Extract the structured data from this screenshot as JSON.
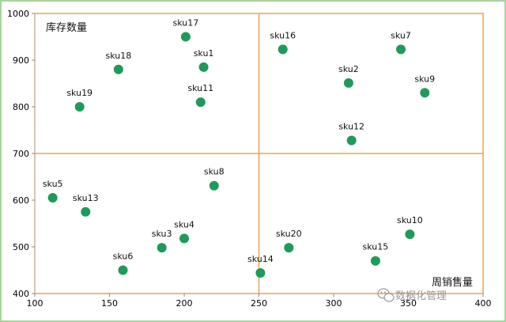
{
  "chart_data": {
    "type": "scatter",
    "title": "",
    "xlabel": "",
    "ylabel": "",
    "xlim": [
      100,
      400
    ],
    "ylim": [
      400,
      1000
    ],
    "x_ticks": [
      "100",
      "150",
      "200",
      "250",
      "300",
      "350",
      "400"
    ],
    "y_ticks": [
      "400",
      "500",
      "600",
      "700",
      "800",
      "900",
      "1000"
    ],
    "quadrant_lines": {
      "x": 250,
      "y": 700
    },
    "annotations": {
      "top_left": "库存数量",
      "bottom_right": "周销售量"
    },
    "colors": {
      "point": "#1e9a5a",
      "quadrant": "#f0a050",
      "axis": "#bbbbbb"
    },
    "points": [
      {
        "label": "sku1",
        "x": 213,
        "y": 885
      },
      {
        "label": "sku2",
        "x": 310,
        "y": 851
      },
      {
        "label": "sku3",
        "x": 185,
        "y": 498
      },
      {
        "label": "sku4",
        "x": 200,
        "y": 518
      },
      {
        "label": "sku5",
        "x": 112,
        "y": 605
      },
      {
        "label": "sku6",
        "x": 159,
        "y": 450
      },
      {
        "label": "sku7",
        "x": 345,
        "y": 923
      },
      {
        "label": "sku8",
        "x": 220,
        "y": 631
      },
      {
        "label": "sku9",
        "x": 361,
        "y": 830
      },
      {
        "label": "sku10",
        "x": 351,
        "y": 527
      },
      {
        "label": "sku11",
        "x": 211,
        "y": 810
      },
      {
        "label": "sku12",
        "x": 312,
        "y": 728
      },
      {
        "label": "sku13",
        "x": 134,
        "y": 575
      },
      {
        "label": "sku14",
        "x": 251,
        "y": 444
      },
      {
        "label": "sku15",
        "x": 328,
        "y": 470
      },
      {
        "label": "sku16",
        "x": 266,
        "y": 923
      },
      {
        "label": "sku17",
        "x": 201,
        "y": 950
      },
      {
        "label": "sku18",
        "x": 156,
        "y": 880
      },
      {
        "label": "sku19",
        "x": 130,
        "y": 800
      },
      {
        "label": "sku20",
        "x": 270,
        "y": 498
      }
    ]
  },
  "watermark": {
    "text": "数据化管理",
    "icon": "wechat-icon"
  }
}
